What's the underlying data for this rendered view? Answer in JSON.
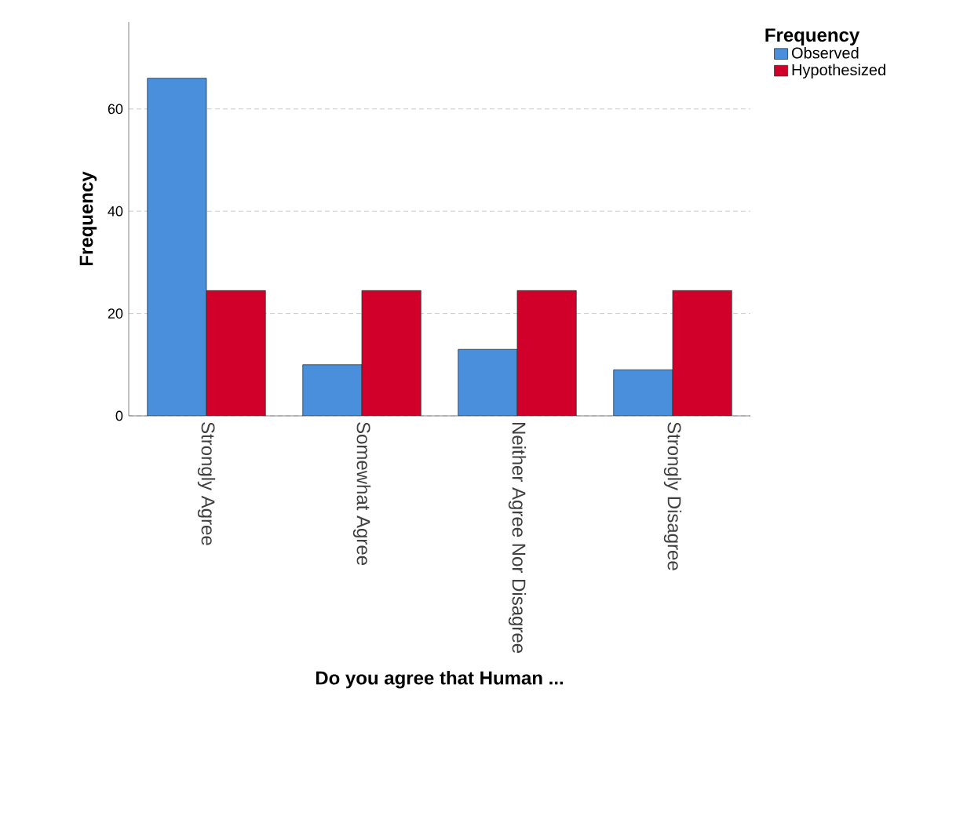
{
  "chart_data": {
    "type": "bar",
    "xlabel": "Do you agree  that Human ...",
    "ylabel": "Frequency",
    "legend_title": "Frequency",
    "categories": [
      "Strongly Agree",
      "Somewhat Agree",
      "Neither Agree Nor Disagree",
      "Strongly Disagree"
    ],
    "series": [
      {
        "name": "Observed",
        "color": "#4a8fdc",
        "values": [
          66,
          10,
          13,
          9
        ]
      },
      {
        "name": "Hypothesized",
        "color": "#d0002a",
        "values": [
          24.5,
          24.5,
          24.5,
          24.5
        ]
      }
    ],
    "ylim": [
      0,
      77
    ],
    "yticks": [
      0,
      20,
      40,
      60
    ],
    "grid": "y",
    "legend": "top right"
  }
}
